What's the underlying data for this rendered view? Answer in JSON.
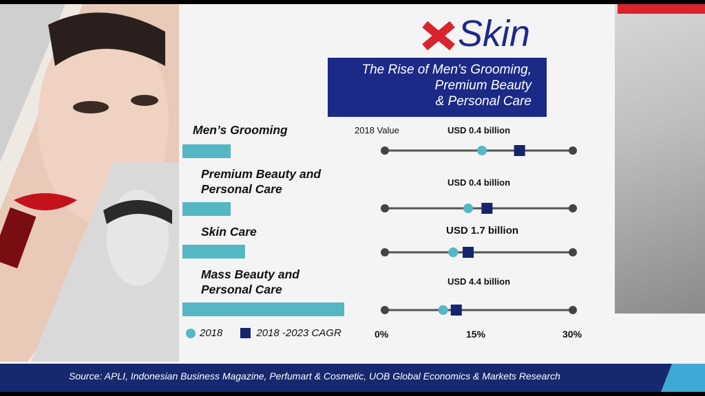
{
  "brand": {
    "logo_text": "Skin"
  },
  "title": {
    "line1": "The Rise of Men's Grooming,",
    "line2": "Premium Beauty",
    "line3": "& Personal Care"
  },
  "header_2018_value": "2018 Value",
  "legend": {
    "s2018": "2018",
    "scagr": "2018 -2023 CAGR"
  },
  "axis_ticks": [
    "0%",
    "15%",
    "30%"
  ],
  "source": "Source: APLI, Indonesian Business Magazine, Perfumart & Cosmetic, UOB Global Economics & Markets Research",
  "colors": {
    "bar": "#55b7c4",
    "cagr": "#14256e",
    "navy": "#1b2a86",
    "accent_red": "#d9232d"
  },
  "chart_data": {
    "type": "dot-plot-with-bars",
    "xlim": [
      0,
      30
    ],
    "categories": [
      {
        "label_line1": "Men’s Grooming",
        "label_line2": "",
        "value_2018": 0.4,
        "value_label": "USD 0.4 billion",
        "growth_2018": 15.5,
        "cagr_2018_2023": 21.5
      },
      {
        "label_line1": "Premium Beauty and",
        "label_line2": "Personal Care",
        "value_2018": 0.4,
        "value_label": "USD 0.4 billion",
        "growth_2018": 13.3,
        "cagr_2018_2023": 16.3
      },
      {
        "label_line1": "Skin Care",
        "label_line2": "",
        "value_2018": 1.7,
        "value_label": "USD 1.7 billion",
        "growth_2018": 10.9,
        "cagr_2018_2023": 13.3
      },
      {
        "label_line1": "Mass Beauty and",
        "label_line2": "Personal Care",
        "value_2018": 4.4,
        "value_label": "USD 4.4 billion",
        "growth_2018": 9.3,
        "cagr_2018_2023": 11.4
      }
    ]
  }
}
